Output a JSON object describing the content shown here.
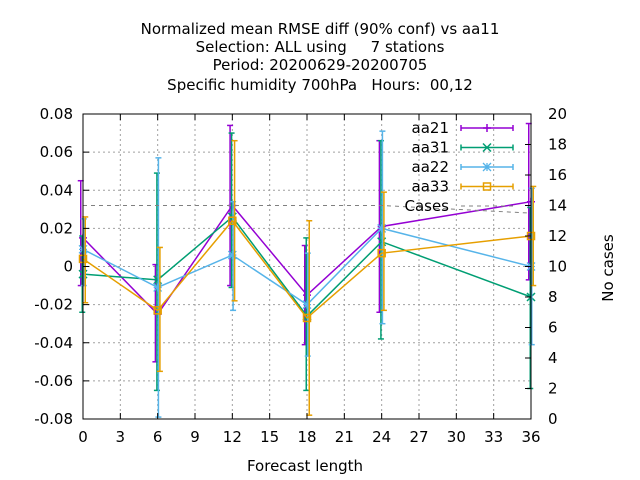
{
  "chart_data": {
    "type": "line",
    "title_lines": [
      "Normalized mean RMSE diff (90% conf) vs aa11",
      "Selection: ALL using     7 stations",
      "Period: 20200629-20200705",
      "Specific humidity 700hPa   Hours:  00,12"
    ],
    "xlabel": "Forecast length",
    "ylabel_right": "No cases",
    "xlim": [
      0,
      36
    ],
    "ylim": [
      -0.08,
      0.08
    ],
    "y2lim": [
      0,
      20
    ],
    "x_ticks": [
      "0",
      "3",
      "6",
      "9",
      "12",
      "15",
      "18",
      "21",
      "24",
      "27",
      "30",
      "33",
      "36"
    ],
    "y_ticks": [
      "-0.08",
      "-0.06",
      "-0.04",
      "-0.02",
      "0",
      "0.02",
      "0.04",
      "0.06",
      "0.08"
    ],
    "y2_ticks": [
      "0",
      "2",
      "4",
      "6",
      "8",
      "10",
      "12",
      "14",
      "16",
      "18",
      "20"
    ],
    "grid": true,
    "legend_position": "top-right",
    "x": [
      0,
      6,
      12,
      18,
      24,
      36
    ],
    "series": [
      {
        "name": "aa21",
        "color": "#9400d3",
        "marker": "plus",
        "values": [
          0.015,
          -0.025,
          0.032,
          -0.015,
          0.021,
          0.034
        ],
        "err_low": [
          -0.01,
          -0.05,
          -0.01,
          -0.041,
          -0.024,
          -0.007
        ],
        "err_high": [
          0.045,
          0.001,
          0.074,
          0.011,
          0.066,
          0.075
        ]
      },
      {
        "name": "aa31",
        "color": "#009e73",
        "marker": "cross",
        "values": [
          -0.004,
          -0.007,
          0.026,
          -0.026,
          0.013,
          -0.016
        ],
        "err_low": [
          -0.024,
          -0.065,
          -0.011,
          -0.065,
          -0.038,
          -0.064
        ],
        "err_high": [
          0.016,
          0.049,
          0.07,
          0.015,
          0.066,
          0.031
        ]
      },
      {
        "name": "aa22",
        "color": "#56b4e9",
        "marker": "star",
        "values": [
          0.009,
          -0.011,
          0.006,
          -0.02,
          0.02,
          0.0
        ],
        "err_low": [
          -0.01,
          -0.079,
          -0.023,
          -0.047,
          -0.03,
          -0.041
        ],
        "err_high": [
          0.025,
          0.057,
          0.034,
          0.007,
          0.071,
          0.041
        ]
      },
      {
        "name": "aa33",
        "color": "#e69f00",
        "marker": "square",
        "values": [
          0.004,
          -0.023,
          0.024,
          -0.027,
          0.007,
          0.016
        ],
        "err_low": [
          -0.019,
          -0.055,
          -0.018,
          -0.078,
          -0.023,
          -0.01
        ],
        "err_high": [
          0.026,
          0.01,
          0.066,
          0.024,
          0.039,
          0.042
        ]
      },
      {
        "name": "Cases",
        "color": "#808080",
        "marker": "none",
        "axis": "y2",
        "dashed": true,
        "values": [
          14,
          14,
          14,
          14,
          14,
          13.5
        ]
      }
    ]
  }
}
